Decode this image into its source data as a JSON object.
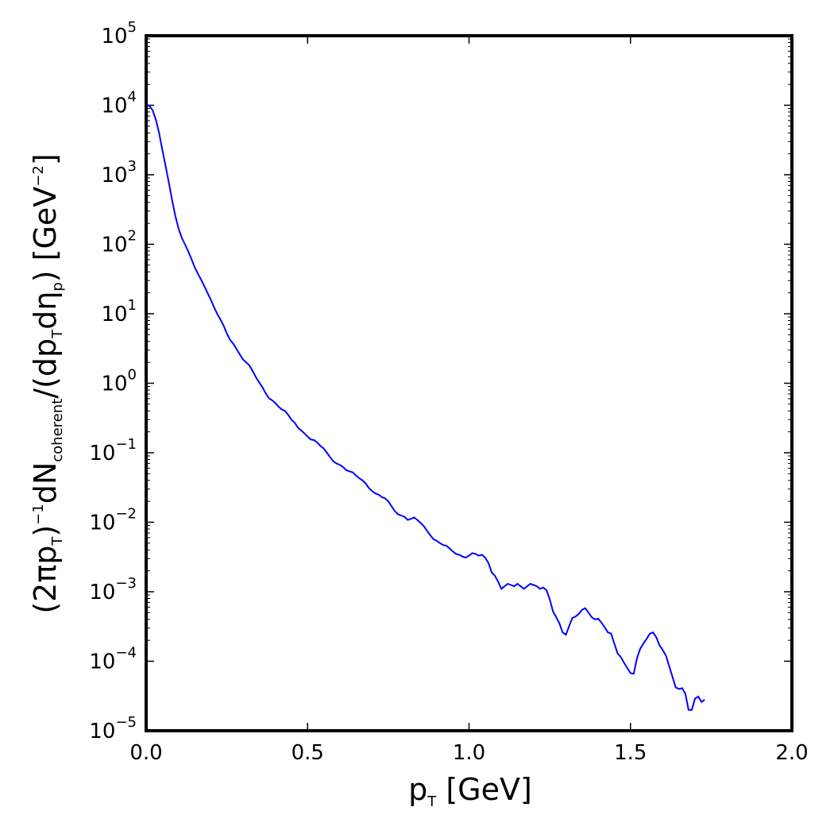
{
  "chart_data": {
    "type": "line",
    "title": "",
    "xlabel": {
      "main": "p",
      "sub": "T",
      "rest": " [GeV]"
    },
    "ylabel": {
      "p1": "(2πp",
      "s1": "T",
      "p2": ")",
      "sup1": "−1",
      "p3": "dN",
      "s2": "coherent",
      "p4": "/(dp",
      "s3": "T",
      "p5": "dη",
      "s4": "p",
      "p6": ") [GeV",
      "sup2": "−2",
      "p7": "]"
    },
    "xlim": [
      0.0,
      2.0
    ],
    "ylim": [
      1e-05,
      100000
    ],
    "yscale": "log",
    "grid": false,
    "x_ticks": [
      {
        "value": 0.0,
        "label": "0.0"
      },
      {
        "value": 0.5,
        "label": "0.5"
      },
      {
        "value": 1.0,
        "label": "1.0"
      },
      {
        "value": 1.5,
        "label": "1.5"
      },
      {
        "value": 2.0,
        "label": "2.0"
      }
    ],
    "y_ticks": [
      {
        "value": 100000,
        "base": "10",
        "exp": "5"
      },
      {
        "value": 10000,
        "base": "10",
        "exp": "4"
      },
      {
        "value": 1000,
        "base": "10",
        "exp": "3"
      },
      {
        "value": 100,
        "base": "10",
        "exp": "2"
      },
      {
        "value": 10,
        "base": "10",
        "exp": "1"
      },
      {
        "value": 1,
        "base": "10",
        "exp": "0"
      },
      {
        "value": 0.1,
        "base": "10",
        "exp": "−1"
      },
      {
        "value": 0.01,
        "base": "10",
        "exp": "−2"
      },
      {
        "value": 0.001,
        "base": "10",
        "exp": "−3"
      },
      {
        "value": 0.0001,
        "base": "10",
        "exp": "−4"
      },
      {
        "value": 1e-05,
        "base": "10",
        "exp": "−5"
      }
    ],
    "series": [
      {
        "color": "#0000ff",
        "points": [
          [
            0.0,
            10000
          ],
          [
            0.01,
            9800
          ],
          [
            0.02,
            8500
          ],
          [
            0.03,
            6200
          ],
          [
            0.04,
            4000
          ],
          [
            0.05,
            2300
          ],
          [
            0.06,
            1350
          ],
          [
            0.07,
            780
          ],
          [
            0.08,
            440
          ],
          [
            0.09,
            260
          ],
          [
            0.1,
            170
          ],
          [
            0.11,
            125
          ],
          [
            0.12,
            100
          ],
          [
            0.13,
            80
          ],
          [
            0.14,
            62
          ],
          [
            0.15,
            47
          ],
          [
            0.16,
            38
          ],
          [
            0.17,
            31
          ],
          [
            0.18,
            25
          ],
          [
            0.19,
            20
          ],
          [
            0.2,
            16
          ],
          [
            0.21,
            12.5
          ],
          [
            0.22,
            10
          ],
          [
            0.23,
            8.3
          ],
          [
            0.24,
            6.7
          ],
          [
            0.25,
            5.2
          ],
          [
            0.26,
            4.2
          ],
          [
            0.27,
            3.7
          ],
          [
            0.28,
            3.1
          ],
          [
            0.29,
            2.6
          ],
          [
            0.3,
            2.2
          ],
          [
            0.31,
            2.0
          ],
          [
            0.32,
            1.8
          ],
          [
            0.33,
            1.5
          ],
          [
            0.34,
            1.22
          ],
          [
            0.35,
            1.03
          ],
          [
            0.36,
            0.88
          ],
          [
            0.37,
            0.72
          ],
          [
            0.38,
            0.61
          ],
          [
            0.39,
            0.57
          ],
          [
            0.4,
            0.52
          ],
          [
            0.41,
            0.46
          ],
          [
            0.42,
            0.42
          ],
          [
            0.43,
            0.4
          ],
          [
            0.44,
            0.35
          ],
          [
            0.45,
            0.3
          ],
          [
            0.46,
            0.27
          ],
          [
            0.47,
            0.23
          ],
          [
            0.48,
            0.21
          ],
          [
            0.49,
            0.19
          ],
          [
            0.5,
            0.17
          ],
          [
            0.51,
            0.155
          ],
          [
            0.52,
            0.152
          ],
          [
            0.53,
            0.14
          ],
          [
            0.54,
            0.125
          ],
          [
            0.55,
            0.115
          ],
          [
            0.56,
            0.1
          ],
          [
            0.57,
            0.086
          ],
          [
            0.58,
            0.075
          ],
          [
            0.59,
            0.07
          ],
          [
            0.6,
            0.067
          ],
          [
            0.61,
            0.062
          ],
          [
            0.62,
            0.056
          ],
          [
            0.63,
            0.054
          ],
          [
            0.64,
            0.052
          ],
          [
            0.65,
            0.047
          ],
          [
            0.66,
            0.043
          ],
          [
            0.67,
            0.04
          ],
          [
            0.68,
            0.036
          ],
          [
            0.69,
            0.031
          ],
          [
            0.7,
            0.028
          ],
          [
            0.71,
            0.026
          ],
          [
            0.72,
            0.025
          ],
          [
            0.73,
            0.023
          ],
          [
            0.74,
            0.022
          ],
          [
            0.75,
            0.02
          ],
          [
            0.76,
            0.017
          ],
          [
            0.77,
            0.0145
          ],
          [
            0.78,
            0.013
          ],
          [
            0.79,
            0.0125
          ],
          [
            0.8,
            0.012
          ],
          [
            0.81,
            0.0108
          ],
          [
            0.82,
            0.0112
          ],
          [
            0.83,
            0.0117
          ],
          [
            0.84,
            0.0108
          ],
          [
            0.85,
            0.0098
          ],
          [
            0.86,
            0.0088
          ],
          [
            0.87,
            0.0075
          ],
          [
            0.88,
            0.0065
          ],
          [
            0.89,
            0.0057
          ],
          [
            0.9,
            0.0054
          ],
          [
            0.91,
            0.005
          ],
          [
            0.92,
            0.0047
          ],
          [
            0.93,
            0.0046
          ],
          [
            0.94,
            0.0042
          ],
          [
            0.95,
            0.0038
          ],
          [
            0.96,
            0.0035
          ],
          [
            0.97,
            0.0034
          ],
          [
            0.98,
            0.0032
          ],
          [
            0.99,
            0.0031
          ],
          [
            1.0,
            0.0033
          ],
          [
            1.01,
            0.0036
          ],
          [
            1.02,
            0.0035
          ],
          [
            1.03,
            0.0033
          ],
          [
            1.04,
            0.0034
          ],
          [
            1.05,
            0.0031
          ],
          [
            1.06,
            0.0026
          ],
          [
            1.07,
            0.0019
          ],
          [
            1.08,
            0.0017
          ],
          [
            1.09,
            0.0014
          ],
          [
            1.1,
            0.0011
          ],
          [
            1.11,
            0.0012
          ],
          [
            1.12,
            0.0013
          ],
          [
            1.13,
            0.00125
          ],
          [
            1.14,
            0.0012
          ],
          [
            1.15,
            0.0013
          ],
          [
            1.16,
            0.0012
          ],
          [
            1.17,
            0.0011
          ],
          [
            1.18,
            0.0012
          ],
          [
            1.19,
            0.0013
          ],
          [
            1.2,
            0.00125
          ],
          [
            1.21,
            0.0012
          ],
          [
            1.22,
            0.0011
          ],
          [
            1.23,
            0.00115
          ],
          [
            1.24,
            0.00105
          ],
          [
            1.25,
            0.00078
          ],
          [
            1.26,
            0.00052
          ],
          [
            1.27,
            0.00043
          ],
          [
            1.28,
            0.00035
          ],
          [
            1.29,
            0.00026
          ],
          [
            1.3,
            0.00024
          ],
          [
            1.31,
            0.00032
          ],
          [
            1.32,
            0.00042
          ],
          [
            1.33,
            0.00044
          ],
          [
            1.34,
            0.00048
          ],
          [
            1.35,
            0.00055
          ],
          [
            1.36,
            0.00058
          ],
          [
            1.37,
            0.0005
          ],
          [
            1.38,
            0.00043
          ],
          [
            1.39,
            0.0004
          ],
          [
            1.4,
            0.00041
          ],
          [
            1.41,
            0.00036
          ],
          [
            1.42,
            0.00031
          ],
          [
            1.43,
            0.00026
          ],
          [
            1.44,
            0.00025
          ],
          [
            1.45,
            0.00018
          ],
          [
            1.46,
            0.00013
          ],
          [
            1.47,
            0.000115
          ],
          [
            1.48,
            9.5e-05
          ],
          [
            1.49,
            8e-05
          ],
          [
            1.5,
            6.75e-05
          ],
          [
            1.51,
            6.6e-05
          ],
          [
            1.52,
            0.00011
          ],
          [
            1.53,
            0.00015
          ],
          [
            1.54,
            0.00018
          ],
          [
            1.55,
            0.00021
          ],
          [
            1.56,
            0.00025
          ],
          [
            1.57,
            0.00026
          ],
          [
            1.58,
            0.00022
          ],
          [
            1.59,
            0.00017
          ],
          [
            1.6,
            0.000145
          ],
          [
            1.61,
            0.00012
          ],
          [
            1.62,
            8.5e-05
          ],
          [
            1.63,
            6e-05
          ],
          [
            1.64,
            4.2e-05
          ],
          [
            1.65,
            4e-05
          ],
          [
            1.66,
            4.1e-05
          ],
          [
            1.67,
            3.4e-05
          ],
          [
            1.68,
            2e-05
          ],
          [
            1.69,
            2e-05
          ],
          [
            1.7,
            2.9e-05
          ],
          [
            1.71,
            3.1e-05
          ],
          [
            1.72,
            2.6e-05
          ],
          [
            1.73,
            2.8e-05
          ]
        ]
      }
    ]
  }
}
